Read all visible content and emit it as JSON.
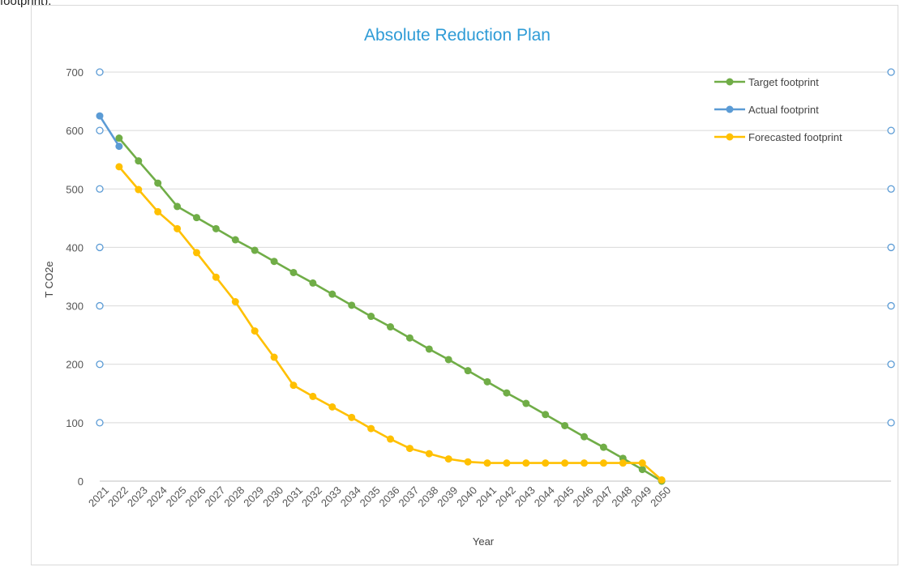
{
  "header": {
    "clipped_text": "footprint)."
  },
  "chart_data": {
    "type": "line",
    "title": "Absolute Reduction Plan",
    "xlabel": "Year",
    "ylabel": "T CO2e",
    "ylim": [
      0,
      700
    ],
    "yticks": [
      0,
      100,
      200,
      300,
      400,
      500,
      600,
      700
    ],
    "grid": true,
    "legend_position": "top-right",
    "categories": [
      "2021",
      "2022",
      "2023",
      "2024",
      "2025",
      "2026",
      "2027",
      "2028",
      "2029",
      "2030",
      "2031",
      "2032",
      "2033",
      "2034",
      "2035",
      "2036",
      "2037",
      "2038",
      "2039",
      "2040",
      "2041",
      "2042",
      "2043",
      "2044",
      "2045",
      "2046",
      "2047",
      "2048",
      "2049",
      "2050"
    ],
    "series": [
      {
        "name": "Target footprint",
        "color": "#70ad47",
        "values": [
          null,
          587,
          548,
          510,
          470,
          451,
          432,
          413,
          395,
          376,
          357,
          339,
          320,
          301,
          282,
          264,
          245,
          226,
          208,
          189,
          170,
          151,
          133,
          114,
          95,
          76,
          58,
          39,
          20,
          0
        ]
      },
      {
        "name": "Actual footprint",
        "color": "#5b9bd5",
        "values": [
          625,
          573,
          null,
          null,
          null,
          null,
          null,
          null,
          null,
          null,
          null,
          null,
          null,
          null,
          null,
          null,
          null,
          null,
          null,
          null,
          null,
          null,
          null,
          null,
          null,
          null,
          null,
          null,
          null,
          null
        ]
      },
      {
        "name": "Forecasted footprint",
        "color": "#ffc000",
        "values": [
          null,
          538,
          499,
          461,
          432,
          391,
          349,
          307,
          257,
          212,
          164,
          145,
          127,
          109,
          90,
          72,
          56,
          47,
          38,
          33,
          31,
          31,
          31,
          31,
          31,
          31,
          31,
          31,
          31,
          2
        ]
      }
    ],
    "extra_marker_color": "#5b9bd5"
  }
}
